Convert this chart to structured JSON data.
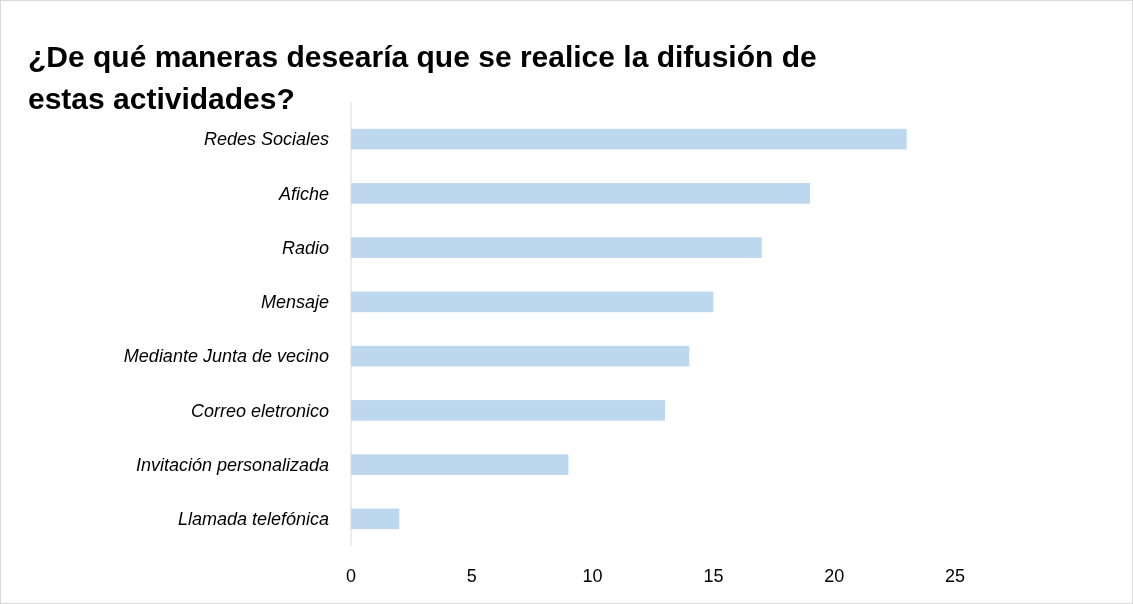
{
  "chart_data": {
    "type": "bar",
    "orientation": "horizontal",
    "title": "¿De qué maneras desearía que se realice la difusión de estas actividades?",
    "categories": [
      "Redes Sociales",
      "Afiche",
      "Radio",
      "Mensaje",
      "Mediante Junta de vecino",
      "Correo eletronico",
      "Invitación personalizada",
      "Llamada telefónica"
    ],
    "values": [
      23,
      19,
      17,
      15,
      14,
      13,
      9,
      2
    ],
    "color": "#bdd7ee",
    "xlim": [
      0,
      25
    ],
    "xticks": [
      0,
      5,
      10,
      15,
      20,
      25
    ],
    "grid": false
  }
}
